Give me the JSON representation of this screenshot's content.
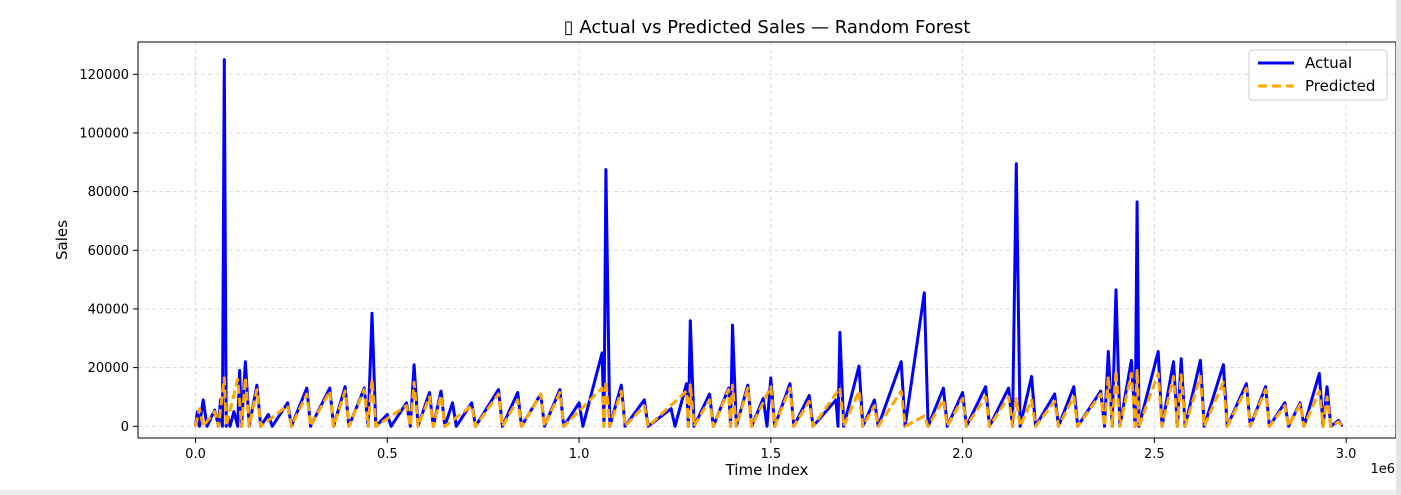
{
  "chart_data": {
    "type": "line",
    "title": "▯ Actual vs Predicted Sales — Random Forest",
    "xlabel": "Time Index",
    "ylabel": "Sales",
    "x_offset_label": "1e6",
    "xlim": [
      -0.15,
      3.13
    ],
    "ylim": [
      -4000,
      131000
    ],
    "x_unit_multiplier": 1000000,
    "xticks": [
      0.0,
      0.5,
      1.0,
      1.5,
      2.0,
      2.5,
      3.0
    ],
    "xtick_labels": [
      "0.0",
      "0.5",
      "1.0",
      "1.5",
      "2.0",
      "2.5",
      "3.0"
    ],
    "yticks": [
      0,
      20000,
      40000,
      60000,
      80000,
      100000,
      120000
    ],
    "ytick_labels": [
      "0",
      "20000",
      "40000",
      "60000",
      "80000",
      "100000",
      "120000"
    ],
    "grid": true,
    "legend_position": "top-right",
    "series": [
      {
        "name": "Actual",
        "color": "#0000ff",
        "style": "solid",
        "points": [
          [
            0.0,
            0
          ],
          [
            0.005,
            5000
          ],
          [
            0.01,
            0
          ],
          [
            0.02,
            9000
          ],
          [
            0.03,
            0
          ],
          [
            0.05,
            5500
          ],
          [
            0.06,
            0
          ],
          [
            0.065,
            9000
          ],
          [
            0.07,
            0
          ],
          [
            0.075,
            125000
          ],
          [
            0.08,
            0
          ],
          [
            0.085,
            3000
          ],
          [
            0.09,
            0
          ],
          [
            0.1,
            5000
          ],
          [
            0.11,
            0
          ],
          [
            0.115,
            19000
          ],
          [
            0.12,
            0
          ],
          [
            0.13,
            22000
          ],
          [
            0.14,
            0
          ],
          [
            0.16,
            14000
          ],
          [
            0.17,
            0
          ],
          [
            0.19,
            4000
          ],
          [
            0.2,
            0
          ],
          [
            0.24,
            8000
          ],
          [
            0.25,
            0
          ],
          [
            0.29,
            13000
          ],
          [
            0.3,
            0
          ],
          [
            0.35,
            13000
          ],
          [
            0.36,
            0
          ],
          [
            0.39,
            13500
          ],
          [
            0.4,
            0
          ],
          [
            0.44,
            13000
          ],
          [
            0.45,
            0
          ],
          [
            0.46,
            38500
          ],
          [
            0.47,
            0
          ],
          [
            0.5,
            4000
          ],
          [
            0.51,
            0
          ],
          [
            0.55,
            8000
          ],
          [
            0.56,
            0
          ],
          [
            0.57,
            21000
          ],
          [
            0.58,
            0
          ],
          [
            0.61,
            11500
          ],
          [
            0.62,
            0
          ],
          [
            0.64,
            12000
          ],
          [
            0.65,
            0
          ],
          [
            0.67,
            8000
          ],
          [
            0.68,
            0
          ],
          [
            0.72,
            8000
          ],
          [
            0.73,
            0
          ],
          [
            0.79,
            12500
          ],
          [
            0.8,
            0
          ],
          [
            0.84,
            11500
          ],
          [
            0.85,
            0
          ],
          [
            0.9,
            11000
          ],
          [
            0.91,
            0
          ],
          [
            0.95,
            12500
          ],
          [
            0.96,
            0
          ],
          [
            1.0,
            8000
          ],
          [
            1.01,
            0
          ],
          [
            1.06,
            25000
          ],
          [
            1.065,
            0
          ],
          [
            1.07,
            87500
          ],
          [
            1.08,
            0
          ],
          [
            1.11,
            14000
          ],
          [
            1.12,
            0
          ],
          [
            1.17,
            9000
          ],
          [
            1.18,
            0
          ],
          [
            1.24,
            6000
          ],
          [
            1.25,
            0
          ],
          [
            1.28,
            14500
          ],
          [
            1.285,
            0
          ],
          [
            1.29,
            36000
          ],
          [
            1.3,
            0
          ],
          [
            1.34,
            11000
          ],
          [
            1.35,
            0
          ],
          [
            1.39,
            13000
          ],
          [
            1.395,
            0
          ],
          [
            1.4,
            34500
          ],
          [
            1.41,
            0
          ],
          [
            1.44,
            14000
          ],
          [
            1.45,
            0
          ],
          [
            1.48,
            9500
          ],
          [
            1.49,
            0
          ],
          [
            1.5,
            16500
          ],
          [
            1.51,
            0
          ],
          [
            1.55,
            14500
          ],
          [
            1.56,
            0
          ],
          [
            1.6,
            10500
          ],
          [
            1.61,
            0
          ],
          [
            1.67,
            9000
          ],
          [
            1.675,
            0
          ],
          [
            1.68,
            32000
          ],
          [
            1.69,
            0
          ],
          [
            1.73,
            20500
          ],
          [
            1.74,
            0
          ],
          [
            1.77,
            9000
          ],
          [
            1.78,
            0
          ],
          [
            1.84,
            22000
          ],
          [
            1.85,
            0
          ],
          [
            1.9,
            45500
          ],
          [
            1.91,
            0
          ],
          [
            1.95,
            13000
          ],
          [
            1.96,
            0
          ],
          [
            2.0,
            11500
          ],
          [
            2.01,
            0
          ],
          [
            2.06,
            13500
          ],
          [
            2.07,
            0
          ],
          [
            2.12,
            13000
          ],
          [
            2.13,
            0
          ],
          [
            2.14,
            89500
          ],
          [
            2.15,
            0
          ],
          [
            2.18,
            17000
          ],
          [
            2.19,
            0
          ],
          [
            2.24,
            11000
          ],
          [
            2.25,
            0
          ],
          [
            2.29,
            13500
          ],
          [
            2.3,
            0
          ],
          [
            2.36,
            12000
          ],
          [
            2.37,
            0
          ],
          [
            2.38,
            25500
          ],
          [
            2.39,
            0
          ],
          [
            2.4,
            46500
          ],
          [
            2.41,
            0
          ],
          [
            2.44,
            22500
          ],
          [
            2.45,
            0
          ],
          [
            2.455,
            76500
          ],
          [
            2.46,
            0
          ],
          [
            2.51,
            25500
          ],
          [
            2.52,
            0
          ],
          [
            2.55,
            22000
          ],
          [
            2.56,
            0
          ],
          [
            2.57,
            23000
          ],
          [
            2.58,
            0
          ],
          [
            2.62,
            22500
          ],
          [
            2.63,
            0
          ],
          [
            2.68,
            21000
          ],
          [
            2.69,
            0
          ],
          [
            2.74,
            14500
          ],
          [
            2.75,
            0
          ],
          [
            2.79,
            13500
          ],
          [
            2.8,
            0
          ],
          [
            2.84,
            8000
          ],
          [
            2.85,
            0
          ],
          [
            2.88,
            8000
          ],
          [
            2.89,
            0
          ],
          [
            2.93,
            18000
          ],
          [
            2.94,
            0
          ],
          [
            2.95,
            13500
          ],
          [
            2.96,
            0
          ],
          [
            2.98,
            2000
          ],
          [
            2.99,
            0
          ]
        ]
      },
      {
        "name": "Predicted",
        "color": "#ffa500",
        "style": "dashed",
        "points": [
          [
            0.0,
            0
          ],
          [
            0.01,
            6000
          ],
          [
            0.02,
            0
          ],
          [
            0.05,
            5000
          ],
          [
            0.06,
            0
          ],
          [
            0.075,
            16500
          ],
          [
            0.08,
            0
          ],
          [
            0.11,
            16000
          ],
          [
            0.12,
            0
          ],
          [
            0.13,
            16500
          ],
          [
            0.14,
            0
          ],
          [
            0.16,
            12500
          ],
          [
            0.17,
            0
          ],
          [
            0.24,
            7000
          ],
          [
            0.25,
            0
          ],
          [
            0.29,
            11000
          ],
          [
            0.3,
            0
          ],
          [
            0.35,
            12000
          ],
          [
            0.36,
            0
          ],
          [
            0.39,
            12000
          ],
          [
            0.4,
            0
          ],
          [
            0.44,
            12500
          ],
          [
            0.45,
            0
          ],
          [
            0.46,
            16000
          ],
          [
            0.47,
            0
          ],
          [
            0.55,
            7000
          ],
          [
            0.56,
            0
          ],
          [
            0.57,
            15000
          ],
          [
            0.58,
            0
          ],
          [
            0.61,
            10000
          ],
          [
            0.62,
            0
          ],
          [
            0.64,
            10500
          ],
          [
            0.65,
            0
          ],
          [
            0.72,
            7000
          ],
          [
            0.73,
            0
          ],
          [
            0.79,
            11000
          ],
          [
            0.8,
            0
          ],
          [
            0.84,
            9000
          ],
          [
            0.85,
            0
          ],
          [
            0.9,
            11000
          ],
          [
            0.91,
            0
          ],
          [
            0.95,
            11500
          ],
          [
            0.96,
            0
          ],
          [
            1.06,
            13000
          ],
          [
            1.065,
            0
          ],
          [
            1.07,
            15500
          ],
          [
            1.08,
            0
          ],
          [
            1.11,
            12000
          ],
          [
            1.12,
            0
          ],
          [
            1.17,
            7000
          ],
          [
            1.18,
            0
          ],
          [
            1.28,
            12000
          ],
          [
            1.285,
            0
          ],
          [
            1.29,
            14500
          ],
          [
            1.3,
            0
          ],
          [
            1.34,
            9000
          ],
          [
            1.35,
            0
          ],
          [
            1.39,
            12500
          ],
          [
            1.395,
            0
          ],
          [
            1.4,
            14000
          ],
          [
            1.41,
            0
          ],
          [
            1.44,
            13000
          ],
          [
            1.45,
            0
          ],
          [
            1.5,
            13500
          ],
          [
            1.51,
            0
          ],
          [
            1.55,
            13000
          ],
          [
            1.56,
            0
          ],
          [
            1.6,
            8500
          ],
          [
            1.61,
            0
          ],
          [
            1.68,
            13000
          ],
          [
            1.69,
            0
          ],
          [
            1.73,
            12000
          ],
          [
            1.74,
            0
          ],
          [
            1.77,
            7000
          ],
          [
            1.78,
            0
          ],
          [
            1.84,
            12000
          ],
          [
            1.85,
            0
          ],
          [
            1.9,
            3500
          ],
          [
            1.91,
            0
          ],
          [
            1.95,
            9000
          ],
          [
            1.96,
            0
          ],
          [
            2.0,
            9500
          ],
          [
            2.01,
            0
          ],
          [
            2.06,
            10000
          ],
          [
            2.07,
            0
          ],
          [
            2.12,
            10000
          ],
          [
            2.13,
            0
          ],
          [
            2.14,
            9500
          ],
          [
            2.15,
            0
          ],
          [
            2.18,
            9000
          ],
          [
            2.19,
            0
          ],
          [
            2.24,
            8500
          ],
          [
            2.25,
            0
          ],
          [
            2.29,
            10000
          ],
          [
            2.3,
            0
          ],
          [
            2.36,
            11000
          ],
          [
            2.37,
            0
          ],
          [
            2.38,
            17000
          ],
          [
            2.39,
            0
          ],
          [
            2.4,
            19000
          ],
          [
            2.41,
            0
          ],
          [
            2.44,
            18000
          ],
          [
            2.45,
            0
          ],
          [
            2.455,
            19000
          ],
          [
            2.46,
            0
          ],
          [
            2.51,
            18000
          ],
          [
            2.52,
            0
          ],
          [
            2.55,
            17000
          ],
          [
            2.56,
            0
          ],
          [
            2.57,
            17500
          ],
          [
            2.58,
            0
          ],
          [
            2.62,
            17000
          ],
          [
            2.63,
            0
          ],
          [
            2.68,
            15000
          ],
          [
            2.69,
            0
          ],
          [
            2.74,
            13000
          ],
          [
            2.75,
            0
          ],
          [
            2.79,
            12500
          ],
          [
            2.8,
            0
          ],
          [
            2.84,
            7000
          ],
          [
            2.85,
            0
          ],
          [
            2.88,
            7500
          ],
          [
            2.89,
            0
          ],
          [
            2.93,
            12000
          ],
          [
            2.94,
            0
          ],
          [
            2.95,
            10000
          ],
          [
            2.96,
            0
          ],
          [
            2.98,
            1500
          ],
          [
            2.99,
            0
          ]
        ]
      }
    ]
  }
}
